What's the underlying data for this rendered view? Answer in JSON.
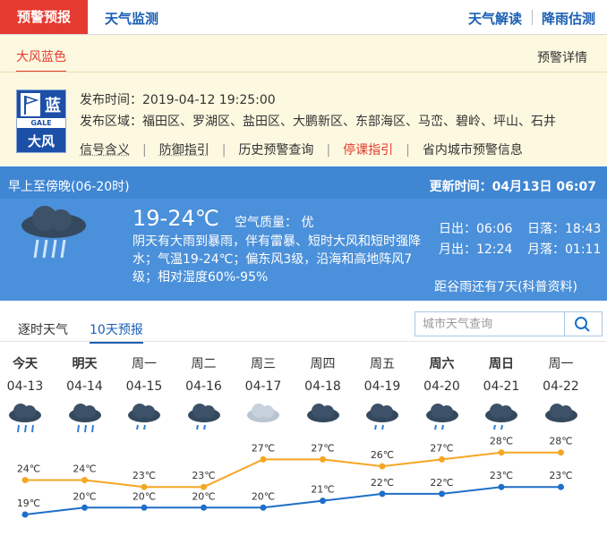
{
  "tabs": {
    "left": [
      "预警预报",
      "天气监测"
    ],
    "right": [
      "天气解读",
      "降雨估测"
    ]
  },
  "warning": {
    "tab": "大风蓝色",
    "detail": "预警详情",
    "icon": {
      "level": "蓝",
      "code": "GALE",
      "name": "大风"
    },
    "time_label": "发布时间：",
    "time": "2019-04-12 19:25:00",
    "area_label": "发布区域：",
    "area": "福田区、罗湖区、盐田区、大鹏新区、东部海区、马峦、碧岭、坪山、石井",
    "links": [
      "信号含义",
      "防御指引",
      "历史预警查询",
      "停课指引",
      "省内城市预警信息"
    ]
  },
  "today": {
    "period": "早上至傍晚(06-20时)",
    "update": "更新时间：04月13日 06:07",
    "temp": "19-24℃",
    "aqi_label": "空气质量：",
    "aqi": "优",
    "desc": "阴天有大雨到暴雨，伴有雷暴、短时大风和短时强降水；气温19-24℃；偏东风3级，沿海和高地阵风7级；相对湿度60%-95%",
    "sunrise": "日出：06:06",
    "sunset": "日落：18:43",
    "moonrise": "月出：12:24",
    "moonset": "月落：01:11",
    "solar_term": "距谷雨还有7天(科普资料)"
  },
  "forecast": {
    "tabs": [
      "逐时天气",
      "10天预报"
    ],
    "search_placeholder": "城市天气查询",
    "days": [
      {
        "weekday": "今天",
        "date": "04-13",
        "bold": true
      },
      {
        "weekday": "明天",
        "date": "04-14",
        "bold": true
      },
      {
        "weekday": "周一",
        "date": "04-15"
      },
      {
        "weekday": "周二",
        "date": "04-16"
      },
      {
        "weekday": "周三",
        "date": "04-17"
      },
      {
        "weekday": "周四",
        "date": "04-18"
      },
      {
        "weekday": "周五",
        "date": "04-19"
      },
      {
        "weekday": "周六",
        "date": "04-20",
        "bold": true
      },
      {
        "weekday": "周日",
        "date": "04-21",
        "bold": true
      },
      {
        "weekday": "周一",
        "date": "04-22"
      }
    ]
  },
  "chart_data": {
    "type": "line",
    "series": [
      {
        "color": "#f5a623",
        "values": [
          24,
          24,
          23,
          23,
          27,
          27,
          26,
          27,
          28,
          28
        ],
        "value_labels": [
          "24℃",
          "24℃",
          "23℃",
          "23℃",
          "27℃",
          "27℃",
          "26℃",
          "27℃",
          "28℃",
          "28℃"
        ]
      },
      {
        "color": "#1e6fc8",
        "values": [
          19,
          20,
          20,
          20,
          20,
          21,
          22,
          22,
          23,
          23
        ],
        "value_labels": [
          "19℃",
          "20℃",
          "20℃",
          "20℃",
          "20℃",
          "21℃",
          "22℃",
          "22℃",
          "23℃",
          "23℃"
        ]
      }
    ]
  }
}
